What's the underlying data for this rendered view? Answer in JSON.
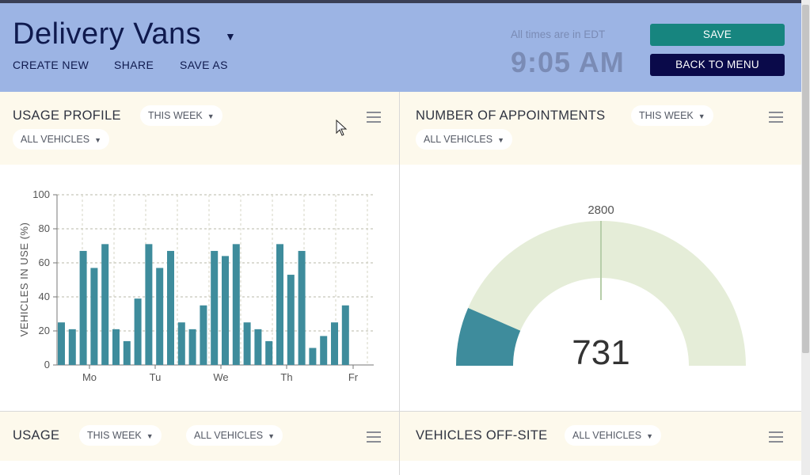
{
  "header": {
    "title": "Delivery Vans",
    "links": [
      "CREATE NEW",
      "SHARE",
      "SAVE AS"
    ],
    "timezone_note": "All times are in EDT",
    "clock": "9:05 AM",
    "save_label": "SAVE",
    "back_label": "BACK TO MENU"
  },
  "panels": {
    "usage_profile": {
      "title": "USAGE PROFILE",
      "period": "THIS WEEK",
      "filter": "ALL VEHICLES"
    },
    "appointments": {
      "title": "NUMBER OF APPOINTMENTS",
      "period": "THIS WEEK",
      "filter": "ALL VEHICLES"
    },
    "usage": {
      "title": "USAGE",
      "period": "THIS WEEK",
      "filter": "ALL VEHICLES"
    },
    "off_site": {
      "title": "VEHICLES OFF-SITE",
      "filter": "ALL VEHICLES"
    }
  },
  "colors": {
    "header_bg": "#9cb4e4",
    "save": "#17857f",
    "back": "#0a0a4a",
    "bar": "#3e8c9c",
    "gauge_track": "#e5edd8"
  },
  "chart_data": [
    {
      "type": "bar",
      "ylabel": "VEHICLES IN USE (%)",
      "ylim": [
        0,
        100
      ],
      "yticks": [
        0,
        20,
        40,
        60,
        80,
        100
      ],
      "xticks": [
        "Mo",
        "Tu",
        "We",
        "Th",
        "Fr"
      ],
      "values": [
        25,
        21,
        67,
        57,
        71,
        21,
        14,
        39,
        71,
        57,
        67,
        25,
        21,
        35,
        67,
        64,
        71,
        25,
        21,
        14,
        71,
        53,
        67,
        10,
        17,
        25,
        35
      ],
      "grid": true
    },
    {
      "type": "gauge",
      "value": 731,
      "target": 2800,
      "value_label": "731",
      "target_label": "2800"
    }
  ]
}
